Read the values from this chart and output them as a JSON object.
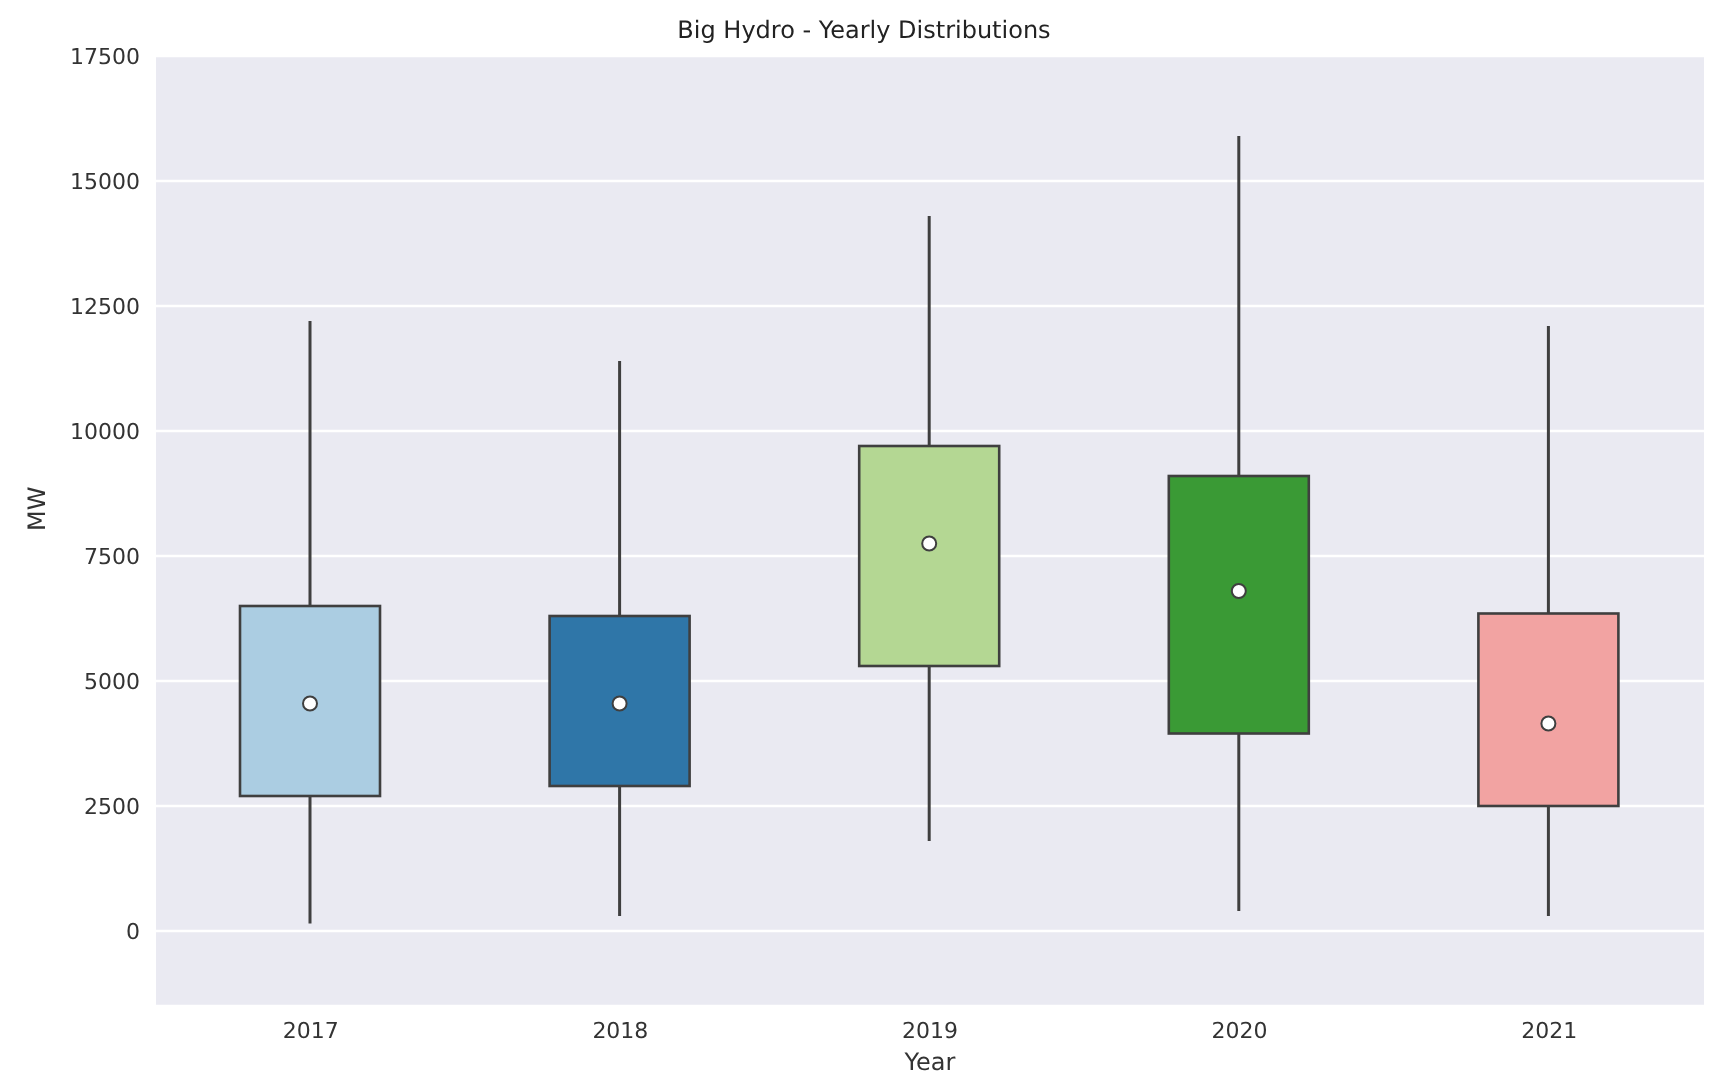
{
  "chart_data": {
    "type": "box",
    "title": "Big Hydro - Yearly Distributions",
    "xlabel": "Year",
    "ylabel": "MW",
    "categories": [
      "2017",
      "2018",
      "2019",
      "2020",
      "2021"
    ],
    "colors": [
      "#abcde2",
      "#2f76a8",
      "#b4d793",
      "#3a9a35",
      "#f2a3a2"
    ],
    "boxes": [
      {
        "low": 150,
        "q1": 2700,
        "median": 4550,
        "q3": 6500,
        "high": 12200
      },
      {
        "low": 300,
        "q1": 2900,
        "median": 4550,
        "q3": 6300,
        "high": 11400
      },
      {
        "low": 1800,
        "q1": 5300,
        "median": 7750,
        "q3": 9700,
        "high": 14300
      },
      {
        "low": 400,
        "q1": 3950,
        "median": 6800,
        "q3": 9100,
        "high": 15900
      },
      {
        "low": 300,
        "q1": 2500,
        "median": 4150,
        "q3": 6350,
        "high": 12100
      }
    ],
    "ylim": [
      -1500,
      17500
    ],
    "yticks": [
      0,
      2500,
      5000,
      7500,
      10000,
      12500,
      15000,
      17500
    ],
    "grid": "y"
  }
}
